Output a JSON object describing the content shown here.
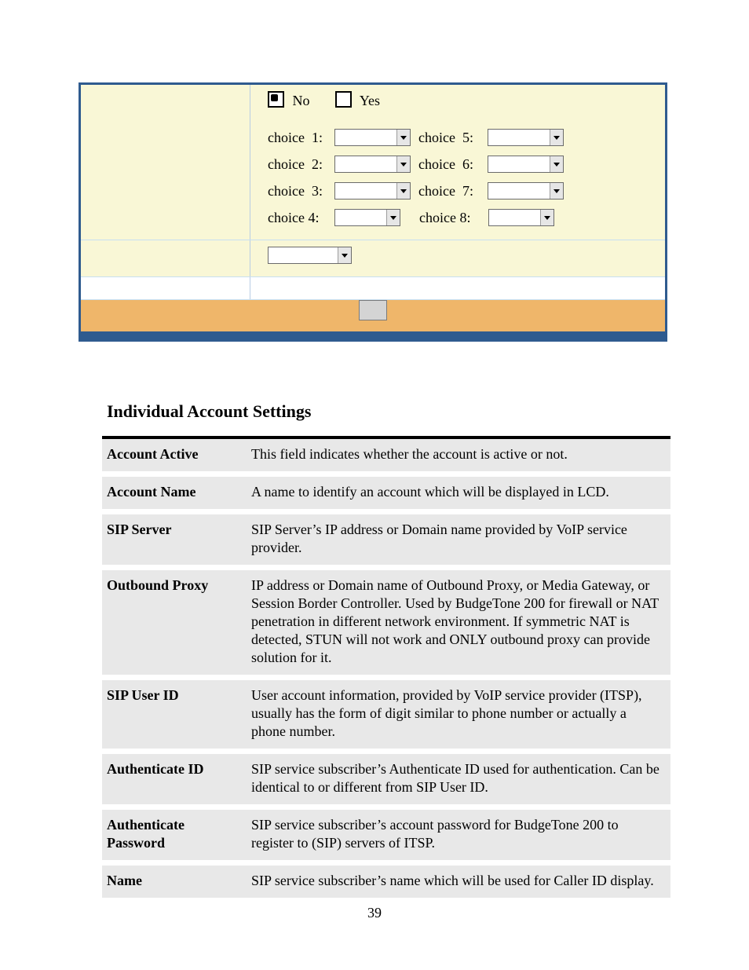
{
  "colors": {
    "page_bg": "#ffffff",
    "table_border": "#2f5b8f",
    "row_cream": "#f9f7d6",
    "row_white": "#ffffff",
    "row_orange": "#efb66a",
    "desc_row_bg": "#e8e8e8",
    "desc_top_rule": "#000000",
    "text": "#000000"
  },
  "typography": {
    "body_family": "Times New Roman",
    "body_size_pt": 13,
    "heading_size_pt": 16,
    "heading_weight": "bold"
  },
  "top_form": {
    "radio": {
      "no": {
        "label": "No",
        "checked": true
      },
      "yes": {
        "label": "Yes",
        "checked": false
      }
    },
    "choices_left": [
      {
        "label": "choice  1:"
      },
      {
        "label": "choice  2:"
      },
      {
        "label": "choice  3:"
      },
      {
        "label": "choice 4:"
      }
    ],
    "choices_right": [
      {
        "label": "choice  5:"
      },
      {
        "label": "choice  6:"
      },
      {
        "label": "choice  7:"
      },
      {
        "label": "choice 8:"
      }
    ]
  },
  "section_heading": "Individual Account Settings",
  "desc_rows": [
    {
      "k": "Account Active",
      "v": "This field indicates whether the account is active or not."
    },
    {
      "k": "Account Name",
      "v": "A name to identify an account which will be displayed in LCD."
    },
    {
      "k": "SIP Server",
      "v": "SIP Server’s IP address or Domain name provided by VoIP service provider."
    },
    {
      "k": "Outbound Proxy",
      "v": "IP address or Domain name of Outbound Proxy, or Media Gateway, or Session Border Controller. Used by BudgeTone 200 for firewall or NAT penetration in different network environment. If symmetric NAT is detected, STUN will not work and ONLY outbound proxy can provide solution for it."
    },
    {
      "k": "SIP User ID",
      "v": "User account information, provided by VoIP service provider (ITSP), usually has the form of digit similar to phone number or actually a phone number."
    },
    {
      "k": "Authenticate ID",
      "v": "SIP service subscriber’s Authenticate ID used for authentication. Can be identical to or different from SIP User ID."
    },
    {
      "k": "Authenticate Password",
      "v": "SIP service subscriber’s account password for BudgeTone 200 to register to (SIP) servers of ITSP."
    },
    {
      "k": "Name",
      "v": "SIP service subscriber’s name which will be used for Caller ID display."
    }
  ],
  "page_number": "39"
}
